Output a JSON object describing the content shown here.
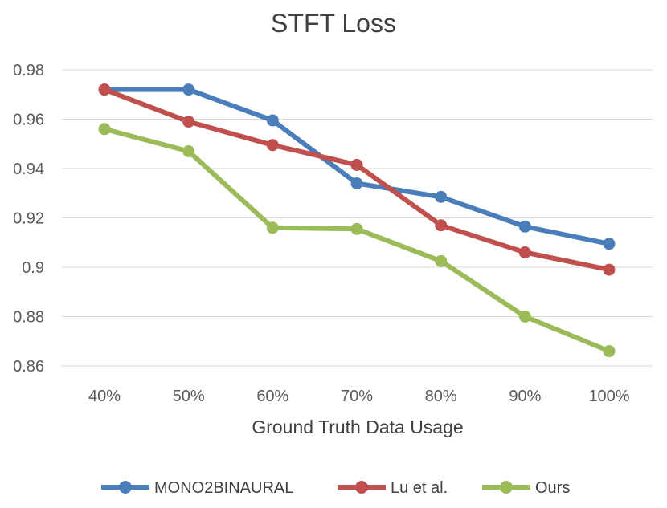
{
  "chart_data": {
    "type": "line",
    "title": "STFT Loss",
    "xlabel": "Ground Truth Data Usage",
    "ylabel": "",
    "categories": [
      "40%",
      "50%",
      "60%",
      "70%",
      "80%",
      "90%",
      "100%"
    ],
    "ylim": [
      0.86,
      0.98
    ],
    "yticks": [
      0.86,
      0.88,
      0.9,
      0.92,
      0.94,
      0.96,
      0.98
    ],
    "ytick_labels": [
      "0.86",
      "0.88",
      "0.9",
      "0.92",
      "0.94",
      "0.96",
      "0.98"
    ],
    "grid": true,
    "legend_position": "bottom",
    "series": [
      {
        "name": "MONO2BINAURAL",
        "color": "#4a7ebb",
        "values": [
          0.972,
          0.972,
          0.9595,
          0.934,
          0.9285,
          0.9165,
          0.9095
        ]
      },
      {
        "name": "Lu et al.",
        "color": "#c0504d",
        "values": [
          0.972,
          0.959,
          0.9495,
          0.9415,
          0.917,
          0.906,
          0.899
        ]
      },
      {
        "name": "Ours",
        "color": "#9bbb59",
        "values": [
          0.956,
          0.947,
          0.916,
          0.9155,
          0.9025,
          0.88,
          0.866
        ]
      }
    ]
  }
}
